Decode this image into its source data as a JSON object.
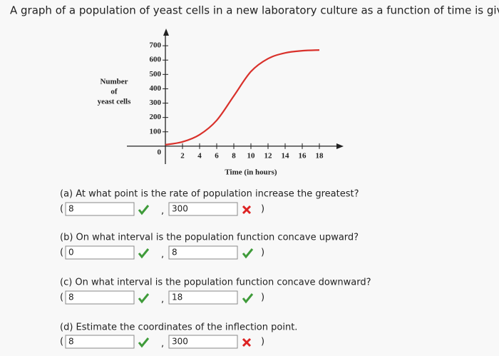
{
  "header": {
    "title": "A graph of a population of yeast cells in a new laboratory culture as a function of time is given."
  },
  "chart_data": {
    "type": "line",
    "ylabel": [
      "Number",
      "of",
      "yeast cells"
    ],
    "xlabel": "Time (in hours)",
    "x": [
      0,
      2,
      4,
      6,
      8,
      10,
      12,
      14,
      16,
      18
    ],
    "values": [
      10,
      30,
      80,
      180,
      350,
      520,
      610,
      650,
      665,
      670
    ],
    "color": "#d9312b",
    "xlim": [
      -4.5,
      20.5
    ],
    "ylim": [
      -125,
      800
    ],
    "xticks": [
      0,
      2,
      4,
      6,
      8,
      10,
      12,
      14,
      16,
      18
    ],
    "yticks": [
      100,
      200,
      300,
      400,
      500,
      600,
      700
    ]
  },
  "questions": [
    {
      "prompt": "(a) At what point is the rate of population increase the greatest?",
      "answers": [
        {
          "value": "8",
          "status": "correct"
        },
        {
          "value": "300",
          "status": "incorrect"
        }
      ]
    },
    {
      "prompt": "(b) On what interval is the population function concave upward?",
      "answers": [
        {
          "value": "0",
          "status": "correct"
        },
        {
          "value": "8",
          "status": "correct"
        }
      ]
    },
    {
      "prompt": "(c) On what interval is the population function concave downward?",
      "answers": [
        {
          "value": "8",
          "status": "correct"
        },
        {
          "value": "18",
          "status": "correct"
        }
      ]
    },
    {
      "prompt": "(d) Estimate the coordinates of the inflection point.",
      "answers": [
        {
          "value": "8",
          "status": "correct"
        },
        {
          "value": "300",
          "status": "incorrect"
        }
      ]
    }
  ],
  "punctuation": {
    "open": "(",
    "separator": ",",
    "close": ")"
  }
}
